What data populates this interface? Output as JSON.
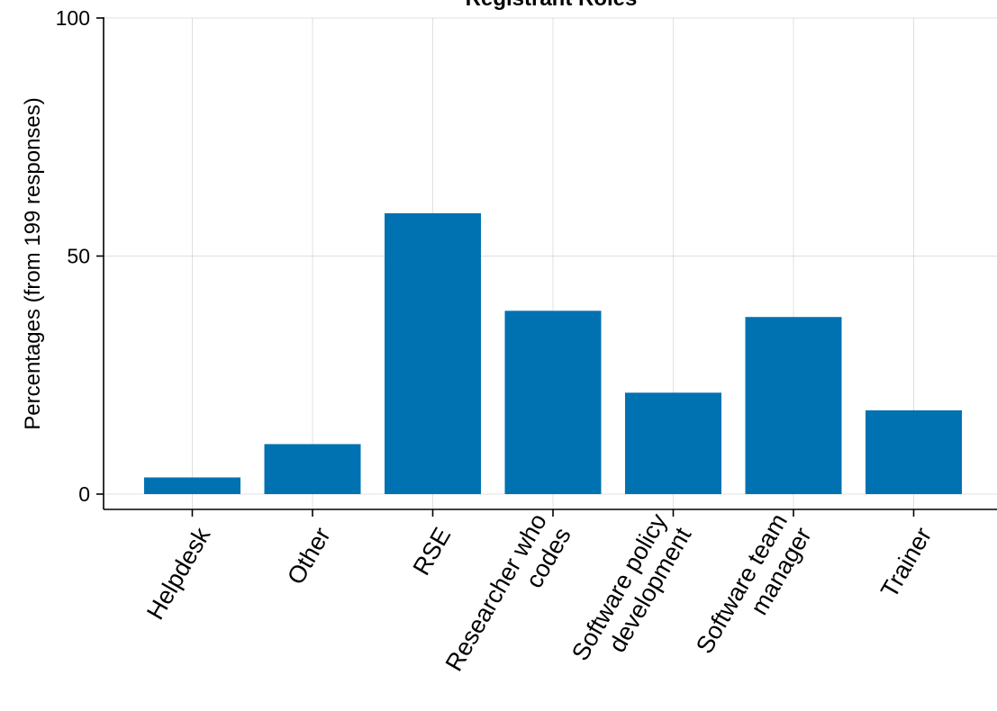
{
  "chart_data": {
    "type": "bar",
    "title": "Registrant Roles",
    "xlabel": "",
    "ylabel": "Percentages (from 199 responses)",
    "categories": [
      [
        "Helpdesk"
      ],
      [
        "Other"
      ],
      [
        "RSE"
      ],
      [
        "Researcher who",
        "codes"
      ],
      [
        "Software policy",
        "development"
      ],
      [
        "Software team",
        "manager"
      ],
      [
        "Trainer"
      ]
    ],
    "values": [
      3.5,
      10.5,
      59,
      38.5,
      21.3,
      37.2,
      17.6
    ],
    "ylim": [
      0,
      100
    ],
    "yticks": [
      0,
      50,
      100
    ],
    "grid": true,
    "bar_color": "#0072b2",
    "legend": "none"
  }
}
